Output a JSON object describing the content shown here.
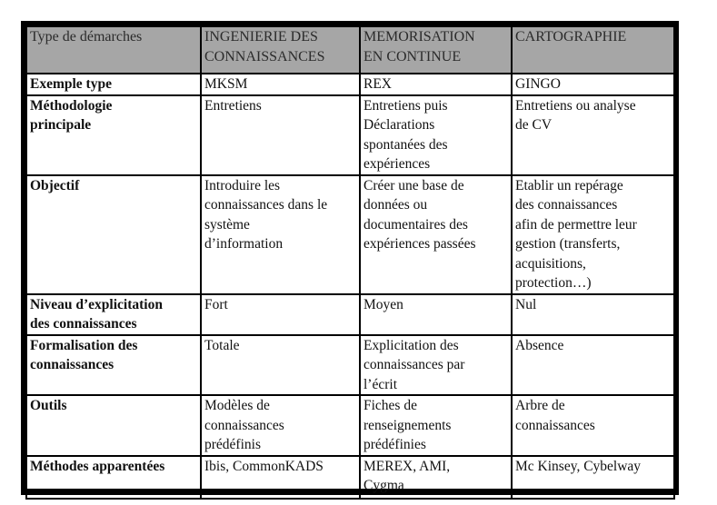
{
  "table": {
    "header": [
      "Type de démarches",
      "INGENIERIE DES\nCONNAISSANCES",
      "MEMORISATION\nEN CONTINUE",
      "CARTOGRAPHIE"
    ],
    "rows": [
      {
        "label": "Exemple type",
        "cells": [
          "MKSM",
          "REX",
          "GINGO"
        ]
      },
      {
        "label": "Méthodologie\nprincipale",
        "cells": [
          "Entretiens",
          "Entretiens puis\nDéclarations\nspontanées des\nexpériences",
          "Entretiens ou analyse\nde CV"
        ]
      },
      {
        "label": "Objectif",
        "cells": [
          "Introduire les\nconnaissances dans le\nsystème\nd’information",
          "Créer une base de\ndonnées ou\ndocumentaires des\nexpériences passées",
          "Etablir un  repérage\ndes connaissances\nafin de permettre leur\ngestion (transferts,\nacquisitions,\nprotection…)"
        ]
      },
      {
        "label": "Niveau d’explicitation\ndes connaissances",
        "cells": [
          "Fort",
          "Moyen",
          "Nul"
        ]
      },
      {
        "label": "Formalisation des\nconnaissances",
        "cells": [
          "Totale",
          "Explicitation des\nconnaissances par\nl’écrit",
          "Absence"
        ]
      },
      {
        "label": "Outils",
        "cells": [
          "Modèles de\nconnaissances\nprédéfinis",
          "Fiches de\nrenseignements\nprédéfinies",
          "Arbre de\nconnaissances"
        ]
      },
      {
        "label": "Méthodes apparentées",
        "cells": [
          "Ibis, CommonKADS",
          "MEREX, AMI,\nCygma",
          "Mc Kinsey, Cybelway"
        ]
      }
    ]
  },
  "colors": {
    "header_bg": "#a6a6a6",
    "border": "#000000"
  }
}
